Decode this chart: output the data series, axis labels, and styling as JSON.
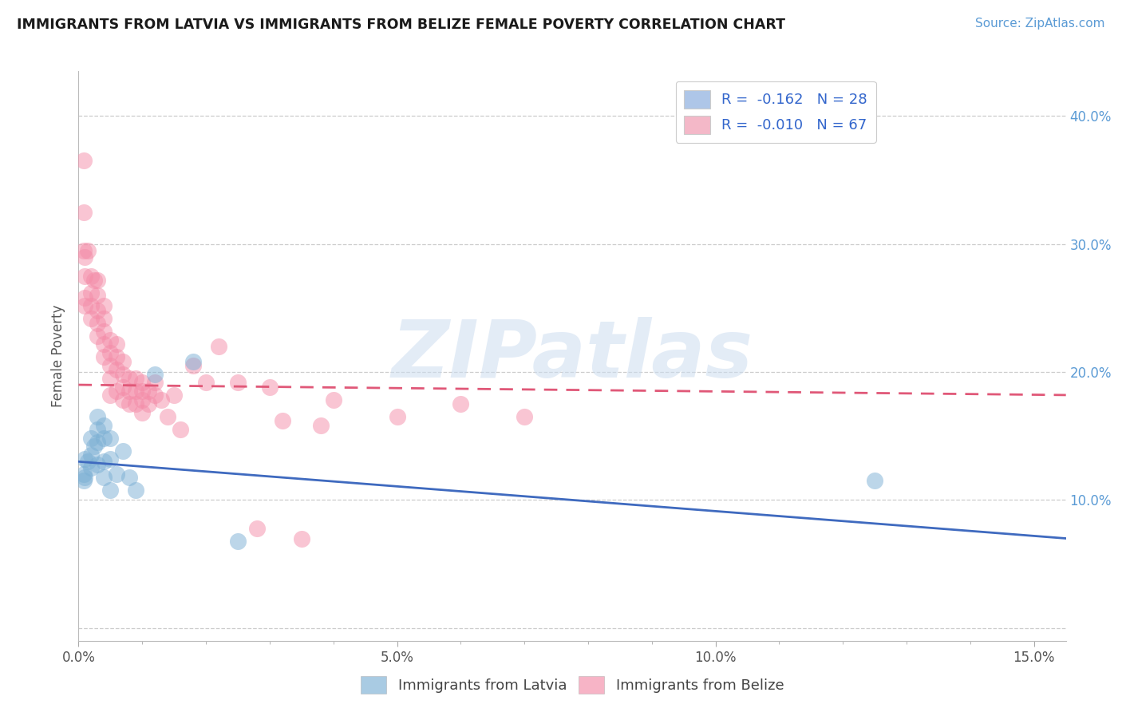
{
  "title": "IMMIGRANTS FROM LATVIA VS IMMIGRANTS FROM BELIZE FEMALE POVERTY CORRELATION CHART",
  "source": "Source: ZipAtlas.com",
  "ylabel": "Female Poverty",
  "xlim": [
    0.0,
    0.155
  ],
  "ylim": [
    -0.01,
    0.435
  ],
  "xtick_vals": [
    0.0,
    0.05,
    0.1,
    0.15
  ],
  "xticklabels": [
    "0.0%",
    "5.0%",
    "10.0%",
    "15.0%"
  ],
  "ytick_vals": [
    0.0,
    0.1,
    0.2,
    0.3,
    0.4
  ],
  "yticklabels_right": [
    "",
    "10.0%",
    "20.0%",
    "30.0%",
    "40.0%"
  ],
  "watermark_text": "ZIPatlas",
  "legend_r_labels": [
    "R =  -0.162   N = 28",
    "R =  -0.010   N = 67"
  ],
  "legend_r_colors": [
    "#aec6e8",
    "#f4b8c8"
  ],
  "legend_bottom_labels": [
    "Immigrants from Latvia",
    "Immigrants from Belize"
  ],
  "latvia_color": "#7bafd4",
  "belize_color": "#f48ca8",
  "trend_latvia_color": "#3f6abf",
  "trend_belize_color": "#e05878",
  "trend_latvia_y0": 0.13,
  "trend_latvia_y1": 0.07,
  "trend_belize_y0": 0.19,
  "trend_belize_y1": 0.182,
  "grid_color": "#cccccc",
  "grid_style": "--",
  "latvia_x": [
    0.0008,
    0.0008,
    0.001,
    0.001,
    0.0015,
    0.002,
    0.002,
    0.002,
    0.0025,
    0.003,
    0.003,
    0.003,
    0.003,
    0.004,
    0.004,
    0.004,
    0.004,
    0.005,
    0.005,
    0.005,
    0.006,
    0.007,
    0.008,
    0.009,
    0.012,
    0.018,
    0.025,
    0.125
  ],
  "latvia_y": [
    0.12,
    0.115,
    0.132,
    0.118,
    0.13,
    0.148,
    0.135,
    0.125,
    0.142,
    0.165,
    0.155,
    0.145,
    0.128,
    0.158,
    0.148,
    0.13,
    0.118,
    0.148,
    0.132,
    0.108,
    0.12,
    0.138,
    0.118,
    0.108,
    0.198,
    0.208,
    0.068,
    0.115
  ],
  "belize_x": [
    0.0008,
    0.0008,
    0.0008,
    0.001,
    0.001,
    0.001,
    0.001,
    0.0015,
    0.002,
    0.002,
    0.002,
    0.002,
    0.0025,
    0.003,
    0.003,
    0.003,
    0.003,
    0.003,
    0.004,
    0.004,
    0.004,
    0.004,
    0.004,
    0.005,
    0.005,
    0.005,
    0.005,
    0.005,
    0.006,
    0.006,
    0.006,
    0.006,
    0.007,
    0.007,
    0.007,
    0.007,
    0.008,
    0.008,
    0.008,
    0.009,
    0.009,
    0.009,
    0.01,
    0.01,
    0.01,
    0.01,
    0.011,
    0.011,
    0.012,
    0.012,
    0.013,
    0.014,
    0.015,
    0.016,
    0.018,
    0.02,
    0.022,
    0.025,
    0.028,
    0.03,
    0.032,
    0.035,
    0.038,
    0.04,
    0.05,
    0.06,
    0.07
  ],
  "belize_y": [
    0.365,
    0.325,
    0.295,
    0.29,
    0.275,
    0.258,
    0.252,
    0.295,
    0.275,
    0.262,
    0.252,
    0.242,
    0.272,
    0.272,
    0.26,
    0.248,
    0.238,
    0.228,
    0.252,
    0.242,
    0.232,
    0.222,
    0.212,
    0.225,
    0.215,
    0.205,
    0.195,
    0.182,
    0.222,
    0.212,
    0.202,
    0.185,
    0.208,
    0.198,
    0.188,
    0.178,
    0.195,
    0.185,
    0.175,
    0.195,
    0.185,
    0.175,
    0.192,
    0.185,
    0.178,
    0.168,
    0.185,
    0.175,
    0.192,
    0.182,
    0.178,
    0.165,
    0.182,
    0.155,
    0.205,
    0.192,
    0.22,
    0.192,
    0.078,
    0.188,
    0.162,
    0.07,
    0.158,
    0.178,
    0.165,
    0.175,
    0.165
  ]
}
